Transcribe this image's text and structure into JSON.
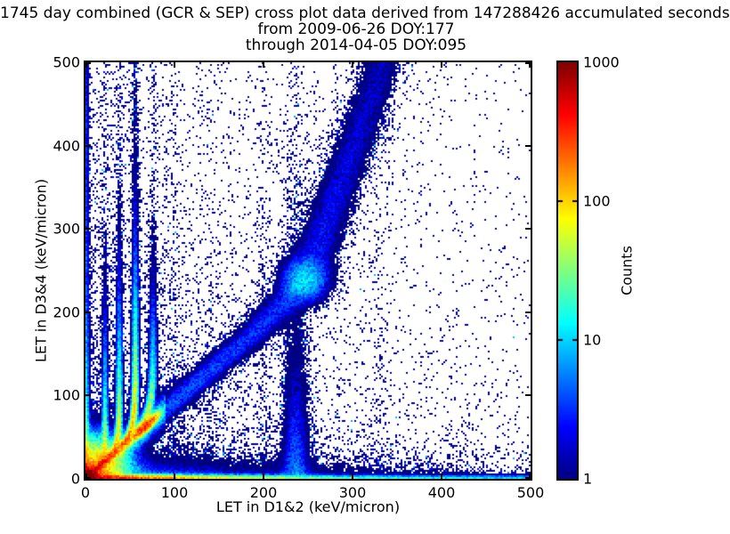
{
  "figure": {
    "background": "#ffffff",
    "text_color": "#000000"
  },
  "chart_data": {
    "type": "heatmap",
    "subtype": "2d-histogram-cross-plot",
    "title": "1745 day combined (GCR & SEP) cross plot data derived from 147288426 accumulated seconds",
    "subtitle": [
      "from 2009-06-26 DOY:177",
      "through 2014-04-05 DOY:095"
    ],
    "stats": {
      "days": 1745,
      "accumulated_seconds": 147288426,
      "start_date": "2009-06-26",
      "start_doy": 177,
      "end_date": "2014-04-05",
      "end_doy": 95
    },
    "xlabel": "LET in D1&2 (keV/micron)",
    "ylabel": "LET in D3&4 (keV/micron)",
    "xlim": [
      0,
      500
    ],
    "ylim": [
      0,
      500
    ],
    "xticks": [
      0,
      100,
      200,
      300,
      400,
      500
    ],
    "yticks": [
      0,
      100,
      200,
      300,
      400,
      500
    ],
    "grid": false,
    "colorbar": {
      "label": "Counts",
      "scale": "log",
      "min": 1,
      "max": 1000,
      "ticks": [
        1,
        10,
        100,
        1000
      ],
      "colormap": "jet",
      "jet_stops": [
        [
          0,
          0,
          0,
          128
        ],
        [
          0.125,
          0,
          0,
          255
        ],
        [
          0.375,
          0,
          255,
          255
        ],
        [
          0.625,
          255,
          255,
          0
        ],
        [
          0.875,
          255,
          0,
          0
        ],
        [
          1,
          128,
          0,
          0
        ]
      ]
    },
    "features": [
      {
        "name": "origin-hotspot",
        "desc": "peak counts ~1000 at LET12~0-15, LET34~0-15 (dark red core)"
      },
      {
        "name": "coincidence-ridge",
        "desc": "bright red/orange ridge along y~0.93x from origin to ~(78,73) with yellow knot near (68,64)"
      },
      {
        "name": "gcr-diagonal-band",
        "desc": "broad 1-10 count blue band along y~x, kink near (248,240), denser blob at (247,238), rising to ~(334,500)",
        "path_xy": [
          [
            4,
            0
          ],
          [
            108,
            100
          ],
          [
            195,
            180
          ],
          [
            248,
            240
          ],
          [
            278,
            330
          ],
          [
            309,
            420
          ],
          [
            334,
            500
          ]
        ]
      },
      {
        "name": "stopping-tracks",
        "desc": "curved cyan/green tracks leaving the ridge, turning vertical near x = 22, 38, 56, 76, fading upward"
      },
      {
        "name": "vertical-streaks",
        "x_positions": [
          56,
          100,
          140,
          200,
          236,
          257,
          283,
          330
        ]
      },
      {
        "name": "left-edge-column",
        "desc": "dense column at x~0: red (~700 counts) at bottom fading to blue (~2) at top"
      },
      {
        "name": "bottom-edge-band",
        "desc": "dense band at y~0: red (~700) near x=0 through yellow/green to cyan/blue (~5) at x=500"
      },
      {
        "name": "background-speckle",
        "desc": "sparse 1-3 count bins, denser near origin and left of diagonal band, very sparse in upper right"
      }
    ],
    "render": {
      "seed": 1337,
      "cell": 2,
      "origin_blob": {
        "amp": 1400,
        "sigma": 6.5,
        "glow_amp": 200,
        "glow_sigma": 22
      },
      "left_column": {
        "amps": [
          700,
          55,
          6,
          1.6
        ],
        "scales": [
          10,
          55,
          300,
          2000
        ],
        "sigma": 2.3
      },
      "bottom_band": {
        "amps": [
          700,
          55,
          7,
          2
        ],
        "scales": [
          55,
          200,
          650,
          3000
        ],
        "sigma": 2.3,
        "diffuse": [
          [
            14,
            100,
            7
          ],
          [
            3,
            260,
            16
          ]
        ]
      },
      "ridge": {
        "slope": 0.93,
        "amp": 520,
        "scale": 30,
        "sigma": 2.7,
        "halo_amp": 38,
        "halo_scale": 55,
        "halo_sigma": 7.5,
        "knot_amp": 300,
        "knot_center": 68,
        "knot_sigma": 7,
        "cut": 78,
        "cut_sigma": 5,
        "xmax": 90
      },
      "band": {
        "path": [
          [
            0,
            4
          ],
          [
            100,
            108
          ],
          [
            180,
            195
          ],
          [
            240,
            248
          ],
          [
            330,
            278
          ],
          [
            420,
            309
          ],
          [
            500,
            334
          ]
        ],
        "sigma_path": [
          [
            0,
            5
          ],
          [
            100,
            11
          ],
          [
            240,
            14
          ],
          [
            500,
            13
          ]
        ],
        "amp_slow": 3.2,
        "slow_scale": 600,
        "amp_fast": 2.6,
        "fast_scale": 160,
        "blob": [
          9,
          247,
          238,
          14
        ]
      },
      "plume": [
        6,
        236,
        8,
        80
      ],
      "tracks": [
        {
          "xf": 22,
          "s0": 14,
          "k": 9,
          "L": 50,
          "amp": 80,
          "tail": 0.25,
          "sigma": 1.8
        },
        {
          "xf": 38,
          "s0": 27,
          "k": 12,
          "L": 55,
          "amp": 120,
          "tail": 0.35,
          "sigma": 1.9
        },
        {
          "xf": 56,
          "s0": 40,
          "k": 16,
          "L": 60,
          "amp": 180,
          "tail": 0.7,
          "sigma": 2.0
        },
        {
          "xf": 76,
          "s0": 55,
          "k": 20,
          "L": 45,
          "amp": 90,
          "tail": 0.3,
          "sigma": 2.4
        }
      ],
      "streaks": [
        [
          56,
          0.5,
          700,
          3
        ],
        [
          100,
          0.3,
          400,
          3
        ],
        [
          140,
          0.12,
          350,
          3
        ],
        [
          200,
          0.22,
          500,
          4
        ],
        [
          236,
          0.4,
          400,
          7
        ],
        [
          257,
          0.2,
          160,
          4
        ],
        [
          283,
          0.15,
          250,
          4
        ],
        [
          330,
          0.12,
          600,
          6
        ]
      ],
      "speckle": [
        [
          0.5,
          95,
          280
        ],
        [
          0.22,
          300,
          110
        ],
        [
          0.06,
          420,
          1000
        ],
        [
          0.012,
          1800,
          1800
        ]
      ],
      "band_halo": [
        0.13,
        2.4,
        900
      ],
      "noise": [
        0.55,
        0.9
      ],
      "promote": [
        0.93,
        0.3,
        0.12
      ]
    }
  },
  "layout_text": {
    "note": "all visible strings are bound from chart_data"
  }
}
